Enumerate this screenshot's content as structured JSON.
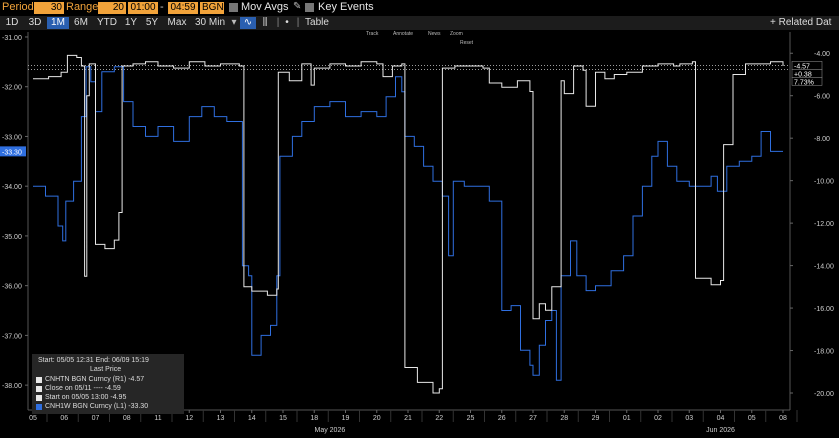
{
  "toolbar": {
    "period_label": "Period",
    "period_value": "30",
    "range_label": "Range",
    "range_value": "20",
    "time_start": "01:00",
    "time_sep": "-",
    "time_end": "04:59",
    "source": "BGN",
    "mov_avgs_label": "Mov Avgs",
    "key_events_label": "Key Events",
    "ranges": [
      "1D",
      "3D",
      "1M",
      "6M",
      "YTD",
      "1Y",
      "5Y",
      "Max"
    ],
    "active_range": "1M",
    "interval_label": "30 Min",
    "table_label": "Table",
    "related_data_label": "+ Related Dat"
  },
  "chart_tools": {
    "track": "Track",
    "annotate": "Annotate",
    "news": "News",
    "zoom": "Zoom",
    "reset": "Reset"
  },
  "colors": {
    "white_series": "#e8e8e8",
    "blue_series": "#2f6fe0",
    "axis_text": "#cfcfcf",
    "toolbar_accent": "#f2a33a",
    "active_tab": "#2a5fb0"
  },
  "legend": {
    "range_text": "Start: 05/05 12:31 End: 06/09 15:19",
    "header": "Last Price",
    "entries": [
      {
        "label": "CNHTN BGN Curncy  (R1)   -4.57",
        "color": "#e8e8e8"
      },
      {
        "label": "Close on 05/11 ----      -4.59",
        "color": "#e8e8e8"
      },
      {
        "label": "Start on 05/05 13:00     -4.95",
        "color": "#e8e8e8"
      },
      {
        "label": "CNH1W BGN Curncy  (L1) -33.30",
        "color": "#2f6fe0"
      }
    ]
  },
  "chart_data": {
    "type": "line",
    "left_axis": {
      "ticks": [
        "-31.00",
        "-32.00",
        "-33.00",
        "-34.00",
        "-35.00",
        "-36.00",
        "-37.00",
        "-38.00"
      ],
      "range": [
        -38.5,
        -30.9
      ],
      "current_label": "-33.30"
    },
    "right_axis": {
      "ticks": [
        "-4.00",
        "-6.00",
        "-8.00",
        "-10.00",
        "-12.00",
        "-14.00",
        "-16.00",
        "-18.00",
        "-20.00"
      ],
      "range": [
        -20.8,
        -3.0
      ],
      "current_labels": [
        "-4.57",
        "+0.38",
        "7.73%"
      ]
    },
    "x_tick_labels": [
      "05",
      "06",
      "07",
      "08",
      "11",
      "12",
      "13",
      "14",
      "15",
      "18",
      "19",
      "20",
      "21",
      "22",
      "25",
      "26",
      "27",
      "28",
      "29",
      "01",
      "02",
      "03",
      "04",
      "05",
      "08"
    ],
    "month_labels": [
      {
        "label": "May 2026",
        "at_index": 9.5
      },
      {
        "label": "Jun 2026",
        "at_index": 22.0
      }
    ],
    "series": [
      {
        "name": "CNHTN BGN Curncy (R1)",
        "axis": "right",
        "points": [
          [
            0,
            -5.2
          ],
          [
            0.5,
            -5.1
          ],
          [
            0.9,
            -4.9
          ],
          [
            1.1,
            -4.1
          ],
          [
            1.4,
            -4.2
          ],
          [
            1.55,
            -4.6
          ],
          [
            1.65,
            -14.5
          ],
          [
            1.72,
            -6.0
          ],
          [
            1.8,
            -4.5
          ],
          [
            2.0,
            -13.0
          ],
          [
            2.3,
            -13.2
          ],
          [
            2.6,
            -12.8
          ],
          [
            2.75,
            -11.5
          ],
          [
            2.85,
            -4.6
          ],
          [
            3.2,
            -4.5
          ],
          [
            3.6,
            -4.4
          ],
          [
            4.0,
            -4.6
          ],
          [
            4.5,
            -4.7
          ],
          [
            5.0,
            -4.4
          ],
          [
            5.5,
            -4.6
          ],
          [
            6.0,
            -4.5
          ],
          [
            6.6,
            -4.6
          ],
          [
            6.75,
            -15.0
          ],
          [
            7.0,
            -15.2
          ],
          [
            7.5,
            -15.4
          ],
          [
            7.8,
            -15.1
          ],
          [
            7.85,
            -4.9
          ],
          [
            8.2,
            -5.3
          ],
          [
            8.6,
            -4.5
          ],
          [
            8.9,
            -5.5
          ],
          [
            9.0,
            -4.7
          ],
          [
            9.5,
            -4.5
          ],
          [
            10.0,
            -4.6
          ],
          [
            10.5,
            -4.4
          ],
          [
            11.0,
            -4.5
          ],
          [
            11.2,
            -5.1
          ],
          [
            11.5,
            -4.6
          ],
          [
            11.8,
            -4.5
          ],
          [
            11.9,
            -18.8
          ],
          [
            12.3,
            -19.5
          ],
          [
            12.8,
            -20.0
          ],
          [
            13.0,
            -19.8
          ],
          [
            13.1,
            -4.7
          ],
          [
            13.5,
            -4.6
          ],
          [
            14.0,
            -4.6
          ],
          [
            14.4,
            -4.7
          ],
          [
            14.6,
            -5.4
          ],
          [
            15.0,
            -5.6
          ],
          [
            15.5,
            -5.3
          ],
          [
            15.9,
            -5.8
          ],
          [
            16.0,
            -16.5
          ],
          [
            16.2,
            -15.8
          ],
          [
            16.4,
            -16.1
          ],
          [
            16.6,
            -15.0
          ],
          [
            16.9,
            -5.3
          ],
          [
            17.0,
            -5.9
          ],
          [
            17.3,
            -4.6
          ],
          [
            17.6,
            -4.8
          ],
          [
            17.7,
            -6.5
          ],
          [
            18.0,
            -4.9
          ],
          [
            18.3,
            -5.2
          ],
          [
            18.6,
            -5.0
          ],
          [
            19.0,
            -4.9
          ],
          [
            19.5,
            -4.6
          ],
          [
            20.0,
            -4.5
          ],
          [
            20.5,
            -4.6
          ],
          [
            20.7,
            -4.5
          ],
          [
            21.1,
            -4.4
          ],
          [
            21.2,
            -14.6
          ],
          [
            21.7,
            -14.9
          ],
          [
            22.0,
            -14.7
          ],
          [
            22.1,
            -8.3
          ],
          [
            22.4,
            -5.0
          ],
          [
            22.8,
            -4.5
          ],
          [
            23.2,
            -4.5
          ],
          [
            23.6,
            -4.4
          ],
          [
            24.0,
            -4.6
          ]
        ]
      },
      {
        "name": "CNH1W BGN Curncy (L1)",
        "axis": "left",
        "points": [
          [
            0,
            -34.0
          ],
          [
            0.4,
            -34.2
          ],
          [
            0.8,
            -34.8
          ],
          [
            0.95,
            -35.1
          ],
          [
            1.05,
            -34.3
          ],
          [
            1.3,
            -33.9
          ],
          [
            1.55,
            -32.6
          ],
          [
            1.7,
            -31.6
          ],
          [
            1.85,
            -31.9
          ],
          [
            2.0,
            -32.5
          ],
          [
            2.2,
            -31.7
          ],
          [
            2.6,
            -31.6
          ],
          [
            2.9,
            -32.3
          ],
          [
            3.2,
            -32.8
          ],
          [
            3.6,
            -33.0
          ],
          [
            4.0,
            -32.8
          ],
          [
            4.5,
            -33.1
          ],
          [
            5.0,
            -32.6
          ],
          [
            5.4,
            -32.4
          ],
          [
            5.8,
            -32.6
          ],
          [
            6.2,
            -32.7
          ],
          [
            6.6,
            -32.7
          ],
          [
            6.7,
            -35.6
          ],
          [
            6.9,
            -35.8
          ],
          [
            7.0,
            -37.4
          ],
          [
            7.3,
            -37.0
          ],
          [
            7.6,
            -36.8
          ],
          [
            7.8,
            -35.8
          ],
          [
            7.9,
            -33.4
          ],
          [
            8.3,
            -33.0
          ],
          [
            8.6,
            -32.7
          ],
          [
            9.0,
            -32.4
          ],
          [
            9.5,
            -32.3
          ],
          [
            10.0,
            -32.6
          ],
          [
            10.5,
            -32.5
          ],
          [
            11.0,
            -32.6
          ],
          [
            11.3,
            -32.2
          ],
          [
            11.6,
            -31.8
          ],
          [
            11.8,
            -32.1
          ],
          [
            11.9,
            -33.0
          ],
          [
            12.2,
            -33.2
          ],
          [
            12.5,
            -33.6
          ],
          [
            12.8,
            -33.9
          ],
          [
            13.1,
            -34.2
          ],
          [
            13.3,
            -35.4
          ],
          [
            13.45,
            -33.9
          ],
          [
            13.8,
            -34.0
          ],
          [
            14.2,
            -34.0
          ],
          [
            14.6,
            -34.3
          ],
          [
            15.0,
            -36.5
          ],
          [
            15.3,
            -36.4
          ],
          [
            15.6,
            -37.3
          ],
          [
            15.9,
            -37.6
          ],
          [
            16.0,
            -37.8
          ],
          [
            16.2,
            -37.2
          ],
          [
            16.4,
            -36.7
          ],
          [
            16.6,
            -36.5
          ],
          [
            16.75,
            -37.9
          ],
          [
            16.9,
            -35.8
          ],
          [
            17.2,
            -35.1
          ],
          [
            17.4,
            -35.8
          ],
          [
            17.7,
            -36.1
          ],
          [
            18.0,
            -36.0
          ],
          [
            18.5,
            -35.7
          ],
          [
            18.9,
            -35.4
          ],
          [
            19.2,
            -34.6
          ],
          [
            19.5,
            -34.0
          ],
          [
            19.8,
            -33.4
          ],
          [
            20.0,
            -33.1
          ],
          [
            20.3,
            -33.6
          ],
          [
            20.6,
            -33.9
          ],
          [
            21.0,
            -34.0
          ],
          [
            21.4,
            -34.0
          ],
          [
            21.7,
            -33.8
          ],
          [
            21.9,
            -34.1
          ],
          [
            22.2,
            -33.6
          ],
          [
            22.6,
            -33.5
          ],
          [
            23.0,
            -33.4
          ],
          [
            23.3,
            -32.9
          ],
          [
            23.6,
            -33.3
          ],
          [
            24.0,
            -33.3
          ]
        ]
      }
    ]
  }
}
